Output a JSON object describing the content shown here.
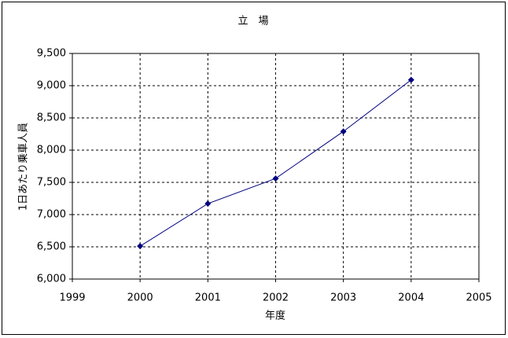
{
  "chart_data": {
    "type": "line",
    "title": "立　場",
    "x_label": "年度",
    "y_label": "1日あたり乗車人員",
    "x": [
      2000,
      2001,
      2002,
      2003,
      2004
    ],
    "series": [
      {
        "name": "立場",
        "color": "#000080",
        "values": [
          6510,
          7170,
          7560,
          8290,
          9090
        ]
      }
    ],
    "xlim": [
      1999,
      2005
    ],
    "xticks": [
      1999,
      2000,
      2001,
      2002,
      2003,
      2004,
      2005
    ],
    "ylim": [
      6000,
      9500
    ],
    "yticks": [
      {
        "value": 6000,
        "label": "6,000"
      },
      {
        "value": 6500,
        "label": "6,500"
      },
      {
        "value": 7000,
        "label": "7,000"
      },
      {
        "value": 7500,
        "label": "7,500"
      },
      {
        "value": 8000,
        "label": "8,000"
      },
      {
        "value": 8500,
        "label": "8,500"
      },
      {
        "value": 9000,
        "label": "9,000"
      },
      {
        "value": 9500,
        "label": "9,500"
      }
    ],
    "grid": true
  }
}
